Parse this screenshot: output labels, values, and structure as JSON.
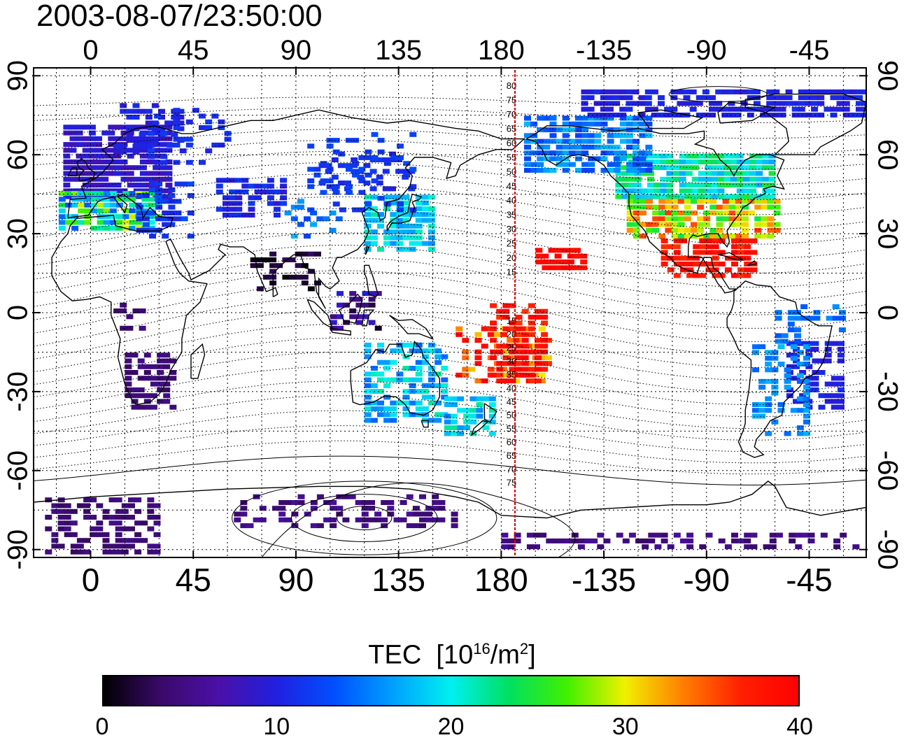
{
  "title": "2003-08-07/23:50:00",
  "map": {
    "type": "TEC map",
    "projection": "equirectangular",
    "lon_range": [
      -25,
      340
    ],
    "lat_range": [
      -93,
      93
    ],
    "top_lon_ticks": [
      "0",
      "45",
      "90",
      "135",
      "180",
      "-135",
      "-90",
      "-45"
    ],
    "bottom_lon_ticks": [
      "0",
      "45",
      "90",
      "135",
      "180",
      "-135",
      "-90",
      "-45"
    ],
    "lat_ticks_left": [
      "90",
      "60",
      "30",
      "0",
      "-30",
      "-60",
      "-90"
    ],
    "lat_ticks_right": [
      "90",
      "60",
      "30",
      "0",
      "-30",
      "-60",
      "-90"
    ],
    "grid": true,
    "terminator_lon": 180,
    "terminator_color": "#e00000",
    "contour_labels": [
      "80",
      "75",
      "70",
      "65",
      "60",
      "55",
      "50",
      "45",
      "40",
      "35",
      "30",
      "25",
      "20",
      "15",
      "15",
      "20",
      "25",
      "30",
      "35",
      "40",
      "45",
      "50",
      "55",
      "60",
      "65",
      "70",
      "75"
    ]
  },
  "colorbar": {
    "label": "TEC",
    "unit_base": "[10",
    "unit_exp": "16",
    "unit_mid": "/m",
    "unit_exp2": "2",
    "unit_end": "]",
    "ticks": [
      "0",
      "10",
      "20",
      "30",
      "40"
    ],
    "range": [
      0,
      40
    ],
    "colors": [
      "#000000",
      "#3a0a6a",
      "#4a10a8",
      "#2020e0",
      "#0050ff",
      "#00a0ff",
      "#00f0f0",
      "#00e060",
      "#40f000",
      "#f0f000",
      "#ff8000",
      "#ff2000",
      "#ff0000"
    ]
  }
}
